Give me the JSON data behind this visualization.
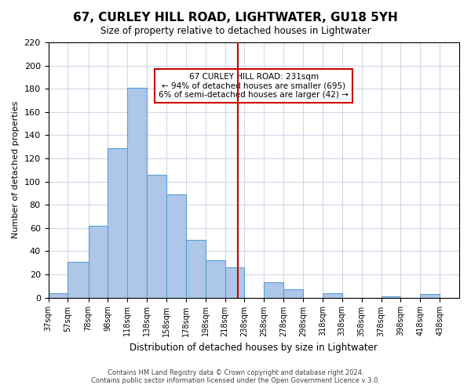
{
  "title": "67, CURLEY HILL ROAD, LIGHTWATER, GU18 5YH",
  "subtitle": "Size of property relative to detached houses in Lightwater",
  "xlabel": "Distribution of detached houses by size in Lightwater",
  "ylabel": "Number of detached properties",
  "bar_edges": [
    37,
    57,
    78,
    98,
    118,
    138,
    158,
    178,
    198,
    218,
    238,
    258,
    278,
    298,
    318,
    338,
    358,
    378,
    398,
    418,
    438,
    458
  ],
  "bar_heights": [
    4,
    31,
    62,
    129,
    181,
    106,
    89,
    50,
    32,
    26,
    0,
    13,
    7,
    0,
    4,
    0,
    0,
    1,
    0,
    3,
    0
  ],
  "bar_color": "#aec6e8",
  "bar_edgecolor": "#5a9fd4",
  "property_line_x": 231,
  "property_line_color": "#cc0000",
  "annotation_title": "67 CURLEY HILL ROAD: 231sqm",
  "annotation_line1": "← 94% of detached houses are smaller (695)",
  "annotation_line2": "6% of semi-detached houses are larger (42) →",
  "annotation_box_color": "#ffffff",
  "annotation_box_edgecolor": "#cc0000",
  "ylim": [
    0,
    220
  ],
  "yticks": [
    0,
    20,
    40,
    60,
    80,
    100,
    120,
    140,
    160,
    180,
    200,
    220
  ],
  "tick_labels": [
    "37sqm",
    "57sqm",
    "78sqm",
    "98sqm",
    "118sqm",
    "138sqm",
    "158sqm",
    "178sqm",
    "198sqm",
    "218sqm",
    "238sqm",
    "258sqm",
    "278sqm",
    "298sqm",
    "318sqm",
    "338sqm",
    "358sqm",
    "378sqm",
    "398sqm",
    "418sqm",
    "438sqm"
  ],
  "footer1": "Contains HM Land Registry data © Crown copyright and database right 2024.",
  "footer2": "Contains public sector information licensed under the Open Government Licence v 3.0.",
  "grid_color": "#d0d8e8",
  "background_color": "#ffffff"
}
